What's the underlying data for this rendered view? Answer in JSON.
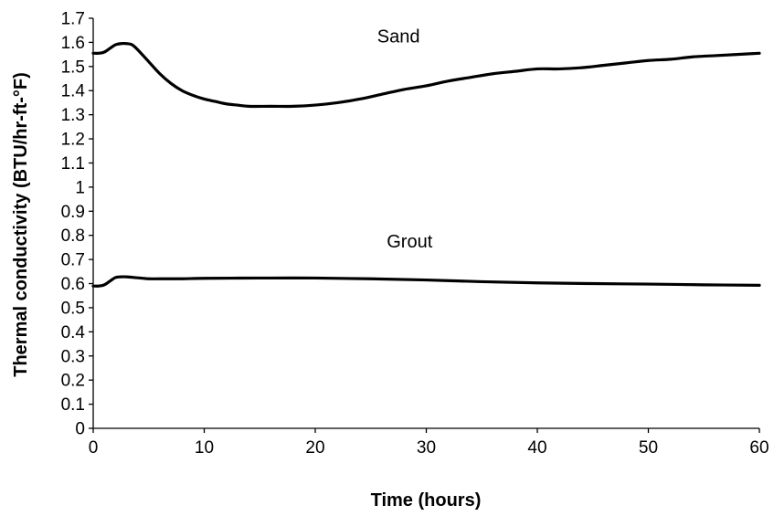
{
  "chart_data": {
    "type": "line",
    "title": "",
    "xlabel": "Time (hours)",
    "ylabel": "Thermal conductivity (BTU/hr-ft-°F)",
    "xlim": [
      0,
      60
    ],
    "ylim": [
      0,
      1.7
    ],
    "x_ticks": [
      0,
      10,
      20,
      30,
      40,
      50,
      60
    ],
    "x_tick_labels": [
      "0",
      "10",
      "20",
      "30",
      "40",
      "50",
      "60"
    ],
    "y_ticks": [
      0,
      0.1,
      0.2,
      0.3,
      0.4,
      0.5,
      0.6,
      0.7,
      0.8,
      0.9,
      1,
      1.1,
      1.2,
      1.3,
      1.4,
      1.5,
      1.6,
      1.7
    ],
    "y_tick_labels": [
      "0",
      "0.1",
      "0.2",
      "0.3",
      "0.4",
      "0.5",
      "0.6",
      "0.7",
      "0.8",
      "0.9",
      "1",
      "1.1",
      "1.2",
      "1.3",
      "1.4",
      "1.5",
      "1.6",
      "1.7"
    ],
    "grid": false,
    "legend": "none",
    "series": [
      {
        "name": "Sand",
        "x": [
          0,
          0.5,
          1,
          1.5,
          2,
          2.5,
          3,
          3.5,
          4,
          5,
          6,
          7,
          8,
          9,
          10,
          11,
          12,
          13,
          14,
          16,
          18,
          20,
          22,
          24,
          26,
          28,
          30,
          32,
          34,
          36,
          38,
          40,
          42,
          44,
          46,
          48,
          50,
          52,
          54,
          56,
          58,
          60
        ],
        "y": [
          1.555,
          1.555,
          1.56,
          1.575,
          1.59,
          1.595,
          1.595,
          1.59,
          1.57,
          1.52,
          1.47,
          1.43,
          1.4,
          1.38,
          1.365,
          1.355,
          1.345,
          1.34,
          1.335,
          1.335,
          1.335,
          1.34,
          1.35,
          1.365,
          1.385,
          1.405,
          1.42,
          1.44,
          1.455,
          1.47,
          1.48,
          1.49,
          1.49,
          1.495,
          1.505,
          1.515,
          1.525,
          1.53,
          1.54,
          1.545,
          1.55,
          1.555
        ]
      },
      {
        "name": "Grout",
        "x": [
          0,
          0.5,
          1,
          1.5,
          2,
          2.5,
          3,
          4,
          5,
          6,
          8,
          10,
          15,
          20,
          25,
          30,
          35,
          40,
          45,
          50,
          55,
          60
        ],
        "y": [
          0.59,
          0.59,
          0.595,
          0.61,
          0.625,
          0.628,
          0.628,
          0.624,
          0.62,
          0.62,
          0.62,
          0.622,
          0.623,
          0.623,
          0.62,
          0.615,
          0.608,
          0.603,
          0.6,
          0.598,
          0.595,
          0.593
        ]
      }
    ],
    "annotations": [
      {
        "text": "Sand",
        "x": 27.5,
        "y": 1.6
      },
      {
        "text": "Grout",
        "x": 28.5,
        "y": 0.75
      }
    ]
  }
}
